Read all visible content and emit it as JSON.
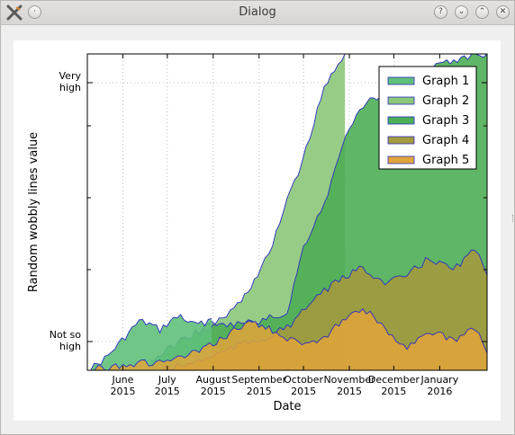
{
  "window": {
    "title": "Dialog",
    "app_icon": "x-logo-icon",
    "buttons": [
      {
        "name": "menu-button",
        "glyph": "·"
      },
      {
        "name": "help-button",
        "glyph": "?"
      },
      {
        "name": "minimize-button",
        "glyph": "⌄"
      },
      {
        "name": "maximize-button",
        "glyph": "⌃"
      },
      {
        "name": "close-button",
        "glyph": "✕"
      }
    ]
  },
  "chart_data": {
    "type": "area",
    "xlabel": "Date",
    "ylabel": "Random wobbly lines value",
    "x_domain": [
      "2015-05-08",
      "2016-02-02"
    ],
    "y_domain": [
      0,
      1.1
    ],
    "xticks": [
      {
        "line1": "June",
        "line2": "2015",
        "date": "2015-06-01"
      },
      {
        "line1": "July",
        "line2": "2015",
        "date": "2015-07-01"
      },
      {
        "line1": "August",
        "line2": "2015",
        "date": "2015-08-01"
      },
      {
        "line1": "September",
        "line2": "2015",
        "date": "2015-09-01"
      },
      {
        "line1": "October",
        "line2": "2015",
        "date": "2015-10-01"
      },
      {
        "line1": "November",
        "line2": "2015",
        "date": "2015-11-01"
      },
      {
        "line1": "December",
        "line2": "2015",
        "date": "2015-12-01"
      },
      {
        "line1": "January",
        "line2": "2016",
        "date": "2016-01-01"
      }
    ],
    "yticks": [
      {
        "value": 0.1,
        "line1": "Not so",
        "line2": "high"
      },
      {
        "value": 1.0,
        "line1": "Very",
        "line2": "high"
      }
    ],
    "minor_yticks": [
      0.35,
      0.6,
      0.85
    ],
    "grid": true,
    "legend_position": "top-right",
    "line_color": "#2a2bc2",
    "series": [
      {
        "name": "Graph 1",
        "color": "#5fc07a",
        "values": [
          [
            "2015-05-08",
            0.0
          ],
          [
            "2015-05-15",
            0.02
          ],
          [
            "2015-05-22",
            0.05
          ],
          [
            "2015-05-29",
            0.09
          ],
          [
            "2015-06-05",
            0.13
          ],
          [
            "2015-06-12",
            0.17
          ],
          [
            "2015-06-19",
            0.16
          ],
          [
            "2015-06-26",
            0.14
          ],
          [
            "2015-07-03",
            0.17
          ],
          [
            "2015-07-10",
            0.19
          ],
          [
            "2015-07-17",
            0.16
          ],
          [
            "2015-07-24",
            0.16
          ],
          [
            "2015-07-31",
            0.18
          ]
        ]
      },
      {
        "name": "Graph 2",
        "color": "#8cc77a",
        "values": [
          [
            "2015-07-20",
            0.13
          ],
          [
            "2015-07-31",
            0.16
          ],
          [
            "2015-08-10",
            0.19
          ],
          [
            "2015-08-20",
            0.24
          ],
          [
            "2015-08-31",
            0.33
          ],
          [
            "2015-09-10",
            0.43
          ],
          [
            "2015-09-20",
            0.6
          ],
          [
            "2015-09-30",
            0.72
          ],
          [
            "2015-10-08",
            0.86
          ],
          [
            "2015-10-15",
            0.98
          ],
          [
            "2015-10-22",
            1.05
          ],
          [
            "2015-10-29",
            1.1
          ]
        ]
      },
      {
        "name": "Graph 3",
        "color": "#4cae55",
        "values": [
          [
            "2015-06-20",
            0.03
          ],
          [
            "2015-07-01",
            0.07
          ],
          [
            "2015-07-15",
            0.12
          ],
          [
            "2015-08-01",
            0.15
          ],
          [
            "2015-08-15",
            0.16
          ],
          [
            "2015-09-01",
            0.17
          ],
          [
            "2015-09-20",
            0.2
          ],
          [
            "2015-10-01",
            0.43
          ],
          [
            "2015-10-15",
            0.58
          ],
          [
            "2015-11-01",
            0.85
          ],
          [
            "2015-11-15",
            0.94
          ],
          [
            "2015-12-01",
            0.98
          ],
          [
            "2015-12-15",
            1.02
          ],
          [
            "2016-01-01",
            1.06
          ],
          [
            "2016-01-20",
            1.09
          ],
          [
            "2016-02-02",
            1.1
          ]
        ]
      },
      {
        "name": "Graph 4",
        "color": "#a39a3e",
        "values": [
          [
            "2015-06-25",
            0.0
          ],
          [
            "2015-07-15",
            0.02
          ],
          [
            "2015-08-01",
            0.05
          ],
          [
            "2015-08-20",
            0.09
          ],
          [
            "2015-09-10",
            0.12
          ],
          [
            "2015-09-25",
            0.17
          ],
          [
            "2015-10-10",
            0.26
          ],
          [
            "2015-10-25",
            0.31
          ],
          [
            "2015-11-10",
            0.36
          ],
          [
            "2015-11-25",
            0.3
          ],
          [
            "2015-12-10",
            0.33
          ],
          [
            "2015-12-25",
            0.39
          ],
          [
            "2016-01-10",
            0.35
          ],
          [
            "2016-01-25",
            0.42
          ],
          [
            "2016-02-02",
            0.33
          ]
        ]
      },
      {
        "name": "Graph 5",
        "color": "#e0a53b",
        "values": [
          [
            "2015-05-08",
            0.0
          ],
          [
            "2015-06-01",
            0.02
          ],
          [
            "2015-07-01",
            0.03
          ],
          [
            "2015-07-25",
            0.07
          ],
          [
            "2015-08-10",
            0.12
          ],
          [
            "2015-08-25",
            0.17
          ],
          [
            "2015-09-10",
            0.14
          ],
          [
            "2015-09-25",
            0.1
          ],
          [
            "2015-10-10",
            0.09
          ],
          [
            "2015-10-25",
            0.16
          ],
          [
            "2015-11-10",
            0.22
          ],
          [
            "2015-11-25",
            0.14
          ],
          [
            "2015-12-10",
            0.08
          ],
          [
            "2015-12-25",
            0.14
          ],
          [
            "2016-01-10",
            0.1
          ],
          [
            "2016-01-25",
            0.15
          ],
          [
            "2016-02-02",
            0.06
          ]
        ]
      }
    ]
  }
}
